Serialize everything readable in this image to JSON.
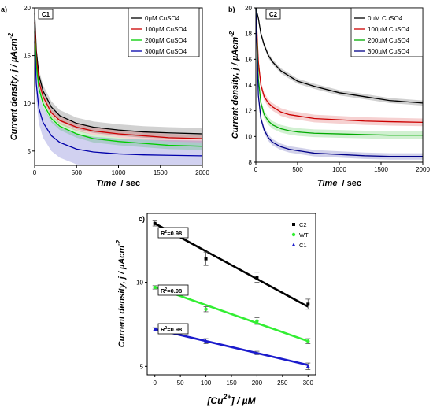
{
  "chart_data": [
    {
      "panel_label": "a)",
      "tag": "C1",
      "type": "line",
      "xlabel_main": "Time",
      "xlabel_unit": "/ sec",
      "ylabel": "Current density, j / µAcm",
      "ylabel_sup": "-2",
      "xlim": [
        0,
        2000
      ],
      "ylim": [
        3.5,
        20
      ],
      "xticks": [
        "0",
        "500",
        "1000",
        "1500",
        "2000"
      ],
      "yticks": [
        "5",
        "10",
        "15",
        "20"
      ],
      "ytick_values": [
        5,
        10,
        15,
        20
      ],
      "legend_position": "top-right",
      "series": [
        {
          "name": "0µM CuSO4",
          "color": "#000000",
          "band": 0.6,
          "x": [
            0,
            20,
            50,
            100,
            200,
            300,
            500,
            700,
            1000,
            1300,
            1600,
            2000
          ],
          "y": [
            19.5,
            15.5,
            13.0,
            11.3,
            9.6,
            8.7,
            7.9,
            7.5,
            7.2,
            7.0,
            6.9,
            6.8
          ]
        },
        {
          "name": "100µM CuSO4",
          "color": "#cc0000",
          "band": 0.4,
          "x": [
            0,
            20,
            50,
            100,
            200,
            300,
            500,
            700,
            1000,
            1300,
            1600,
            2000
          ],
          "y": [
            18.5,
            14.8,
            12.3,
            10.7,
            9.0,
            8.2,
            7.5,
            7.1,
            6.8,
            6.6,
            6.4,
            6.3
          ]
        },
        {
          "name": "200µM CuSO4",
          "color": "#00cc00",
          "band": 0.4,
          "x": [
            0,
            20,
            50,
            100,
            200,
            300,
            500,
            700,
            1000,
            1300,
            1600,
            2000
          ],
          "y": [
            17.5,
            14.0,
            11.6,
            10.0,
            8.4,
            7.6,
            6.8,
            6.3,
            6.0,
            5.8,
            5.6,
            5.5
          ]
        },
        {
          "name": "300µM CuSO4",
          "color": "#0000aa",
          "band": 1.6,
          "x": [
            0,
            20,
            50,
            100,
            200,
            300,
            500,
            700,
            1000,
            1300,
            1600,
            2000
          ],
          "y": [
            16.5,
            12.0,
            9.5,
            8.0,
            6.6,
            5.9,
            5.2,
            4.9,
            4.7,
            4.6,
            4.55,
            4.5
          ]
        }
      ]
    },
    {
      "panel_label": "b)",
      "tag": "C2",
      "type": "line",
      "xlabel_main": "Time",
      "xlabel_unit": "/ sec",
      "ylabel": "Current density, j / µAcm",
      "ylabel_sup": "-2",
      "xlim": [
        0,
        2000
      ],
      "ylim": [
        8,
        20
      ],
      "xticks": [
        "0",
        "500",
        "1000",
        "1500",
        "2000"
      ],
      "yticks": [
        "8",
        "10",
        "12",
        "14",
        "16",
        "18",
        "20"
      ],
      "ytick_values": [
        8,
        10,
        12,
        14,
        16,
        18,
        20
      ],
      "legend_position": "top-right",
      "series": [
        {
          "name": "0µM CuSO4",
          "color": "#000000",
          "band": 0.2,
          "x": [
            0,
            30,
            60,
            100,
            150,
            200,
            300,
            400,
            500,
            700,
            1000,
            1300,
            1600,
            2000
          ],
          "y": [
            20,
            19.2,
            18.0,
            17.1,
            16.3,
            15.8,
            15.1,
            14.7,
            14.3,
            13.9,
            13.4,
            13.1,
            12.8,
            12.6
          ]
        },
        {
          "name": "100µM CuSO4",
          "color": "#cc0000",
          "band": 0.3,
          "x": [
            0,
            30,
            60,
            100,
            150,
            200,
            300,
            400,
            500,
            700,
            1000,
            1300,
            1600,
            2000
          ],
          "y": [
            20,
            15.8,
            14.0,
            13.1,
            12.6,
            12.3,
            11.9,
            11.7,
            11.6,
            11.4,
            11.3,
            11.2,
            11.15,
            11.1
          ]
        },
        {
          "name": "200µM CuSO4",
          "color": "#00aa00",
          "band": 0.3,
          "x": [
            0,
            30,
            60,
            100,
            150,
            200,
            300,
            400,
            500,
            700,
            1000,
            1300,
            1600,
            2000
          ],
          "y": [
            20,
            14.5,
            12.6,
            11.7,
            11.2,
            10.9,
            10.6,
            10.45,
            10.35,
            10.25,
            10.2,
            10.15,
            10.1,
            10.1
          ]
        },
        {
          "name": "300µM CuSO4",
          "color": "#000088",
          "band": 0.25,
          "x": [
            0,
            30,
            60,
            100,
            150,
            200,
            300,
            400,
            500,
            700,
            1000,
            1300,
            1600,
            2000
          ],
          "y": [
            20,
            13.2,
            11.4,
            10.5,
            9.9,
            9.55,
            9.2,
            9.0,
            8.9,
            8.7,
            8.6,
            8.5,
            8.45,
            8.45
          ]
        }
      ]
    },
    {
      "panel_label": "c)",
      "type": "scatter",
      "xlabel_main": "[Cu",
      "xlabel_sup": "2+",
      "xlabel_tail": "] / µM",
      "ylabel": "Current density, j / µAcm",
      "ylabel_sup": "-2",
      "xlim": [
        -15,
        315
      ],
      "ylim": [
        4.5,
        14.1
      ],
      "xticks": [
        "0",
        "50",
        "100",
        "150",
        "200",
        "250",
        "300"
      ],
      "xtick_values": [
        0,
        50,
        100,
        150,
        200,
        250,
        300
      ],
      "yticks": [
        "5",
        "10"
      ],
      "ytick_values": [
        5,
        10
      ],
      "legend_position": "top-right",
      "series": [
        {
          "name": "C2",
          "color": "#000000",
          "marker": "square",
          "x": [
            0,
            100,
            200,
            300
          ],
          "y": [
            13.5,
            11.4,
            10.3,
            8.7
          ],
          "err": [
            0.15,
            0.4,
            0.3,
            0.3
          ],
          "fit": [
            13.5,
            8.55
          ],
          "r2_label": "R",
          "r2_value": "=0.98"
        },
        {
          "name": "WT",
          "color": "#33ee33",
          "marker": "circle",
          "x": [
            0,
            100,
            200,
            300
          ],
          "y": [
            9.7,
            8.4,
            7.7,
            6.5
          ],
          "err": [
            0.1,
            0.15,
            0.2,
            0.15
          ],
          "fit": [
            9.72,
            6.5
          ],
          "r2_label": "R",
          "r2_value": "=0.98"
        },
        {
          "name": "C1",
          "color": "#1b1bcc",
          "marker": "triangle",
          "x": [
            0,
            100,
            200,
            300
          ],
          "y": [
            7.2,
            6.5,
            5.8,
            5.0
          ],
          "err": [
            0.1,
            0.15,
            0.1,
            0.2
          ],
          "fit": [
            7.22,
            5.08
          ],
          "r2_label": "R",
          "r2_value": "=0.98"
        }
      ]
    }
  ]
}
